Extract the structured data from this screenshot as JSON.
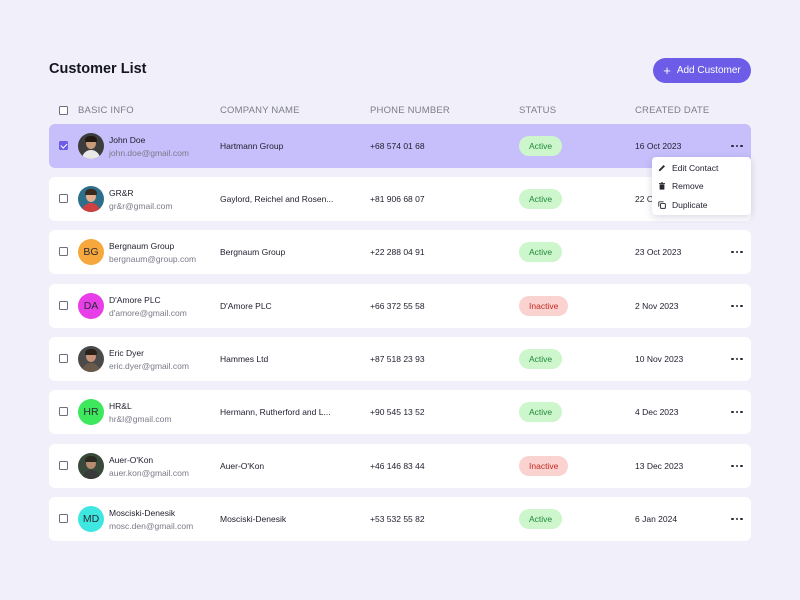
{
  "page": {
    "title": "Customer List",
    "add_button_label": "Add Customer"
  },
  "colors": {
    "accent": "#6c5ce7",
    "selected_row": "#c6bffb",
    "active_bg": "#cdf6cd",
    "active_text": "#1f8a3a",
    "inactive_bg": "#fad2cf",
    "inactive_text": "#c42a20"
  },
  "table": {
    "headers": {
      "basic_info": "BASIC INFO",
      "company": "COMPANY NAME",
      "phone": "PHONE NUMBER",
      "status": "STATUS",
      "created": "CREATED DATE"
    },
    "rows": [
      {
        "name": "John Doe",
        "email": "john.doe@gmail.com",
        "company": "Hartmann Group",
        "phone": "+68 574 01 68",
        "status": "Active",
        "date": "16 Oct 2023",
        "avatar": "photo",
        "initials": "",
        "avatar_color": "",
        "checked": true
      },
      {
        "name": "GR&R",
        "email": "gr&r@gmail.com",
        "company": "Gaylord, Reichel and Rosen...",
        "phone": "+81 906 68 07",
        "status": "Active",
        "date": "22 Oct 2023",
        "avatar": "photo",
        "initials": "",
        "avatar_color": "",
        "checked": false
      },
      {
        "name": "Bergnaum Group",
        "email": "bergnaum@group.com",
        "company": "Bergnaum Group",
        "phone": "+22 288 04 91",
        "status": "Active",
        "date": "23 Oct 2023",
        "avatar": "initials",
        "initials": "BG",
        "avatar_color": "#f7a83c",
        "checked": false
      },
      {
        "name": "D'Amore PLC",
        "email": "d'amore@gmail.com",
        "company": "D'Amore PLC",
        "phone": "+66 372 55 58",
        "status": "Inactive",
        "date": "2 Nov 2023",
        "avatar": "initials",
        "initials": "DA",
        "avatar_color": "#e83ee8",
        "checked": false
      },
      {
        "name": "Eric Dyer",
        "email": "eric.dyer@gmail.com",
        "company": "Hammes Ltd",
        "phone": "+87 518 23 93",
        "status": "Active",
        "date": "10 Nov 2023",
        "avatar": "photo",
        "initials": "",
        "avatar_color": "",
        "checked": false
      },
      {
        "name": "HR&L",
        "email": "hr&l@gmail.com",
        "company": "Hermann, Rutherford and L...",
        "phone": "+90 545 13 52",
        "status": "Active",
        "date": "4 Dec 2023",
        "avatar": "initials",
        "initials": "HR",
        "avatar_color": "#3ee85c",
        "checked": false
      },
      {
        "name": "Auer-O'Kon",
        "email": "auer.kon@gmail.com",
        "company": "Auer-O'Kon",
        "phone": "+46 146 83 44",
        "status": "Inactive",
        "date": "13 Dec 2023",
        "avatar": "photo",
        "initials": "",
        "avatar_color": "",
        "checked": false
      },
      {
        "name": "Mosciski-Denesik",
        "email": "mosc.den@gmail.com",
        "company": "Mosciski-Denesik",
        "phone": "+53 532 55 82",
        "status": "Active",
        "date": "6 Jan 2024",
        "avatar": "initials",
        "initials": "MD",
        "avatar_color": "#3ee8e0",
        "checked": false
      }
    ]
  },
  "context_menu": {
    "items": [
      {
        "label": "Edit Contact",
        "icon": "pencil-icon"
      },
      {
        "label": "Remove",
        "icon": "trash-icon"
      },
      {
        "label": "Duplicate",
        "icon": "copy-icon"
      }
    ]
  }
}
